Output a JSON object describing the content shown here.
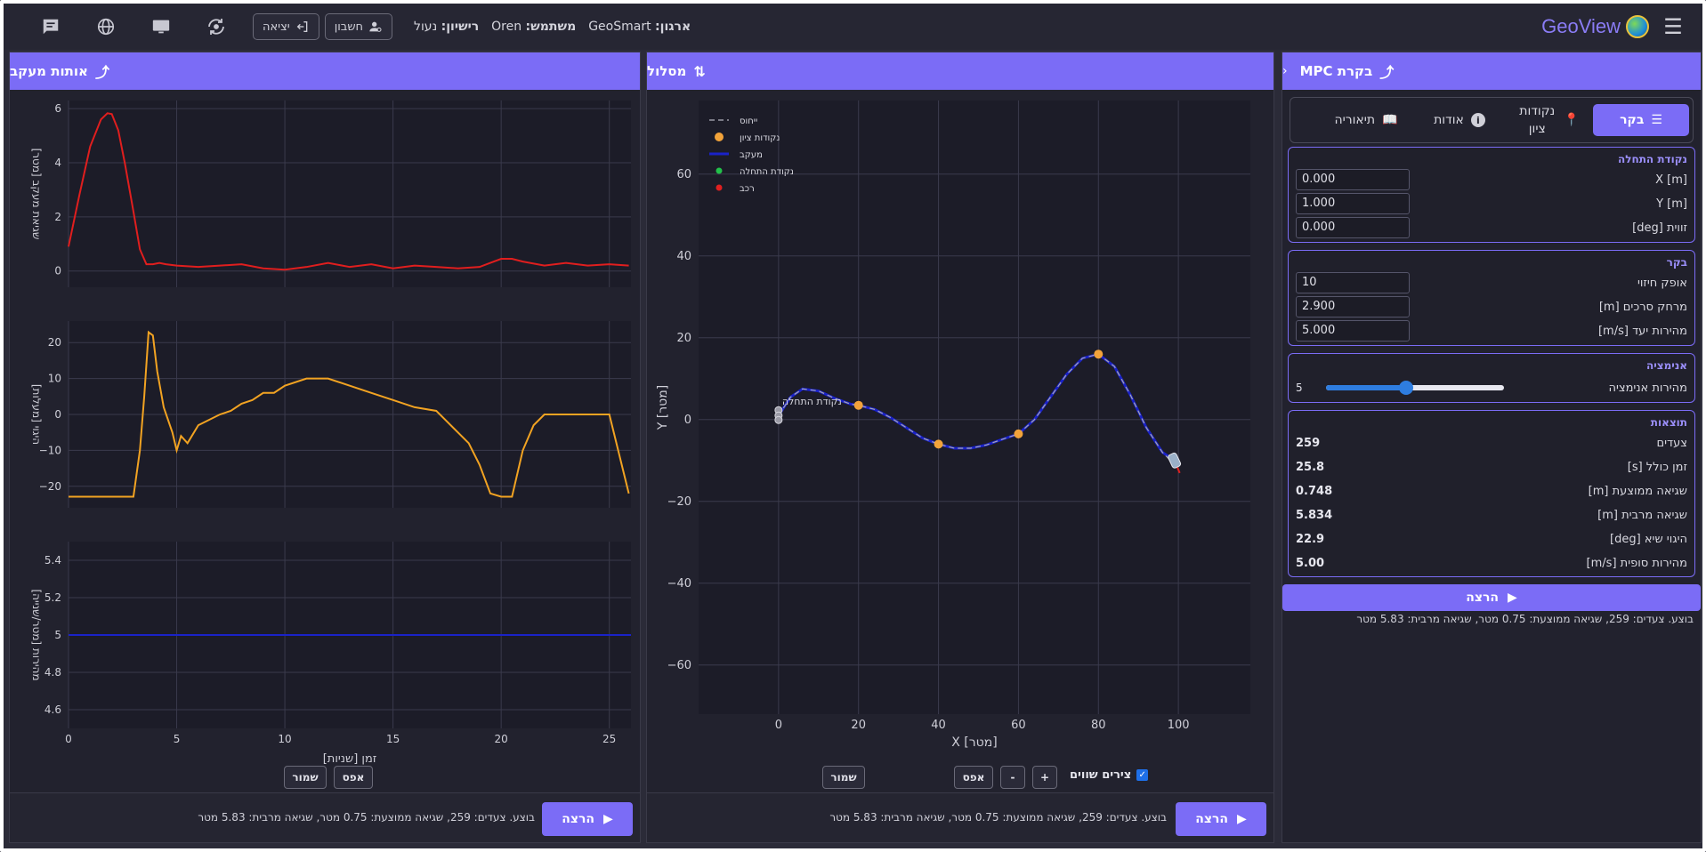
{
  "topbar": {
    "brand": "GeoView",
    "org_label": "ארגון:",
    "org_value": "GeoSmart",
    "user_label": "משתמש:",
    "user_value": "Oren",
    "license_label": "רישיון:",
    "license_value": "נעול",
    "account_label": "חשבון",
    "exit_label": "יציאה",
    "icons": [
      "menu-icon",
      "globe-logo",
      "account-icon",
      "logout-icon",
      "sync-icon",
      "monitor-icon",
      "globe-icon",
      "chat-icon"
    ]
  },
  "control": {
    "title": "בקרת MPC",
    "tabs": [
      {
        "label": "בקר",
        "icon": "sliders-icon",
        "active": true
      },
      {
        "label": "נקודות ציון",
        "icon": "pin-icon",
        "active": false
      },
      {
        "label": "אודות",
        "icon": "info-icon",
        "active": false
      },
      {
        "label": "תיאוריה",
        "icon": "book-icon",
        "active": false
      }
    ],
    "start": {
      "title": "נקודת התחלה",
      "fields": [
        {
          "label": "X [m]",
          "value": "0.000"
        },
        {
          "label": "Y [m]",
          "value": "1.000"
        },
        {
          "label": "זווית [deg]",
          "value": "0.000"
        }
      ]
    },
    "controller": {
      "title": "בקר",
      "fields": [
        {
          "label": "אופק חיזוי",
          "value": "10"
        },
        {
          "label": "מרחק סרכים [m]",
          "value": "2.900"
        },
        {
          "label": "מהירות יעד [m/s]",
          "value": "5.000"
        }
      ]
    },
    "animation": {
      "title": "אנימציה",
      "label": "מהירות אנימציה",
      "value": "5",
      "level": 0.45
    },
    "results": {
      "title": "תוצאות",
      "rows": [
        {
          "label": "צעדים",
          "value": "259"
        },
        {
          "label": "זמן כולל [s]",
          "value": "25.8"
        },
        {
          "label": "שגיאה ממוצעת [m]",
          "value": "0.748"
        },
        {
          "label": "שגיאה מרבית [m]",
          "value": "5.834"
        },
        {
          "label": "היגוי שיא [deg]",
          "value": "22.9"
        },
        {
          "label": "מהירות סופית [m/s]",
          "value": "5.00"
        }
      ]
    },
    "run_label": "הרצה",
    "status": "בוצע. צעדים: 259, שגיאה ממוצעת: 0.75 מטר, שגיאה מרבית: 5.83 מטר"
  },
  "path": {
    "title": "מסלול",
    "legend": [
      {
        "label": "ייחוס",
        "color": "#9a9aa6"
      },
      {
        "label": "נקודות ציון",
        "color": "#f2a33a"
      },
      {
        "label": "מעקב",
        "color": "#1a22c8"
      },
      {
        "label": "נקודת התחלה",
        "color": "#22c04a"
      },
      {
        "label": "רכב",
        "color": "#e02020"
      }
    ],
    "start_annotation": "נקודת התחלה",
    "xlabel": "X [מטר]",
    "ylabel": "Y [מטר]",
    "equal_axes_label": "צירים שווים",
    "equal_axes_checked": true,
    "zoom_in": "+",
    "zoom_out": "-",
    "reset": "אפס",
    "save": "שמור",
    "run_label": "הרצה",
    "status": "בוצע. צעדים: 259, שגיאה ממוצעת: 0.75 מטר, שגיאה מרבית: 5.83 מטר"
  },
  "tracking": {
    "title": "אותות מעקב",
    "xlabel": "זמן [שניות]",
    "reset": "אפס",
    "save": "שמור",
    "run_label": "הרצה",
    "status": "בוצע. צעדים: 259, שגיאה ממוצעת: 0.75 מטר, שגיאה מרבית: 5.83 מטר"
  },
  "chart_data": [
    {
      "type": "scatter",
      "title": "",
      "xlabel": "X [מטר]",
      "ylabel": "Y [מטר]",
      "xlim": [
        -20,
        118
      ],
      "ylim": [
        -72,
        78
      ],
      "xticks": [
        0,
        20,
        40,
        60,
        80,
        100
      ],
      "yticks": [
        -60,
        -40,
        -20,
        0,
        20,
        40,
        60
      ],
      "grid": true,
      "legend_position": "top-left",
      "series": [
        {
          "name": "ייחוס",
          "style": "dashed",
          "x": [
            0,
            3,
            6,
            10,
            14,
            18,
            20,
            24,
            28,
            32,
            36,
            40,
            44,
            48,
            52,
            56,
            60,
            64,
            68,
            72,
            76,
            80,
            84,
            88,
            92,
            96,
            100
          ],
          "y": [
            1,
            5.5,
            7.5,
            7,
            5.2,
            3.8,
            3.5,
            2.5,
            0.5,
            -2,
            -4.5,
            -6,
            -7,
            -7,
            -6.2,
            -4.8,
            -3.5,
            0,
            5.5,
            11,
            15,
            16,
            13,
            6,
            -2,
            -8,
            -12
          ]
        },
        {
          "name": "נקודות ציון",
          "x": [
            20,
            40,
            60,
            80
          ],
          "y": [
            3.5,
            -6,
            -3.5,
            16
          ]
        },
        {
          "name": "מעקב",
          "x": [
            0,
            3,
            6,
            10,
            14,
            18,
            20,
            24,
            28,
            32,
            36,
            40,
            44,
            48,
            52,
            56,
            60,
            64,
            68,
            72,
            76,
            80,
            84,
            88,
            92,
            96,
            99
          ],
          "y": [
            1,
            5.5,
            7.5,
            7,
            5.2,
            3.8,
            3.5,
            2.5,
            0.5,
            -2,
            -4.5,
            -6,
            -7,
            -7,
            -6.2,
            -4.8,
            -3.5,
            0,
            5.5,
            11,
            15,
            16,
            13,
            6,
            -2,
            -8,
            -10
          ]
        },
        {
          "name": "נקודת התחלה",
          "x": [
            0
          ],
          "y": [
            1
          ]
        },
        {
          "name": "רכב",
          "x": [
            99
          ],
          "y": [
            -10
          ]
        }
      ]
    },
    {
      "type": "line",
      "ylabel": "שגיאת מעקב [מטר]",
      "xlim": [
        0,
        26
      ],
      "ylim": [
        -0.6,
        6.3
      ],
      "xticks": [
        0,
        5,
        10,
        15,
        20,
        25
      ],
      "yticks": [
        0,
        2,
        4,
        6
      ],
      "series": [
        {
          "name": "",
          "color": "#e01e1e",
          "x": [
            0,
            0.5,
            1,
            1.5,
            1.8,
            2,
            2.3,
            2.6,
            3,
            3.3,
            3.6,
            3.9,
            4.2,
            4.5,
            5,
            6,
            7,
            8,
            9,
            10,
            11,
            12,
            13,
            14,
            15,
            16,
            17,
            18,
            19,
            19.5,
            20,
            20.5,
            21,
            22,
            23,
            24,
            25,
            25.9
          ],
          "y": [
            0.9,
            2.8,
            4.6,
            5.6,
            5.83,
            5.8,
            5.2,
            4,
            2.2,
            0.8,
            0.25,
            0.25,
            0.3,
            0.25,
            0.2,
            0.15,
            0.2,
            0.25,
            0.1,
            0.05,
            0.15,
            0.3,
            0.15,
            0.25,
            0.1,
            0.2,
            0.15,
            0.1,
            0.15,
            0.3,
            0.45,
            0.45,
            0.35,
            0.2,
            0.3,
            0.2,
            0.25,
            0.2
          ]
        }
      ]
    },
    {
      "type": "line",
      "ylabel": "היגוי [מעלות]",
      "xlim": [
        0,
        26
      ],
      "ylim": [
        -26,
        26
      ],
      "xticks": [
        0,
        5,
        10,
        15,
        20,
        25
      ],
      "yticks": [
        -20,
        -10,
        0,
        10,
        20
      ],
      "series": [
        {
          "name": "",
          "color": "#f2a322",
          "x": [
            0,
            1,
            2,
            3,
            3.3,
            3.5,
            3.7,
            3.9,
            4.1,
            4.4,
            4.8,
            5.0,
            5.2,
            5.5,
            6,
            7,
            7.5,
            8,
            8.5,
            9,
            9.5,
            10,
            11,
            12,
            13,
            14,
            15,
            16,
            17,
            17.5,
            18,
            18.5,
            19,
            19.5,
            20,
            20.5,
            21,
            21.5,
            22,
            23,
            24,
            25,
            25.9
          ],
          "y": [
            -22.9,
            -22.9,
            -22.9,
            -22.9,
            -10,
            5,
            22.9,
            22,
            12,
            2,
            -5,
            -10,
            -6,
            -8,
            -3,
            0,
            1,
            3,
            4,
            6,
            6,
            8,
            10,
            10,
            8,
            6,
            4,
            2,
            1,
            -2,
            -5,
            -8,
            -14,
            -22,
            -22.9,
            -22.9,
            -10,
            -3,
            0,
            0,
            0,
            0,
            -22
          ]
        }
      ]
    },
    {
      "type": "line",
      "ylabel": "מהירות [מטר/שנייה]",
      "xlim": [
        0,
        26
      ],
      "ylim": [
        4.5,
        5.5
      ],
      "xticks": [
        0,
        5,
        10,
        15,
        20,
        25
      ],
      "yticks": [
        4.6,
        4.8,
        5,
        5.2,
        5.4
      ],
      "series": [
        {
          "name": "",
          "color": "#1a22c8",
          "x": [
            0,
            26
          ],
          "y": [
            5,
            5
          ]
        }
      ]
    }
  ]
}
